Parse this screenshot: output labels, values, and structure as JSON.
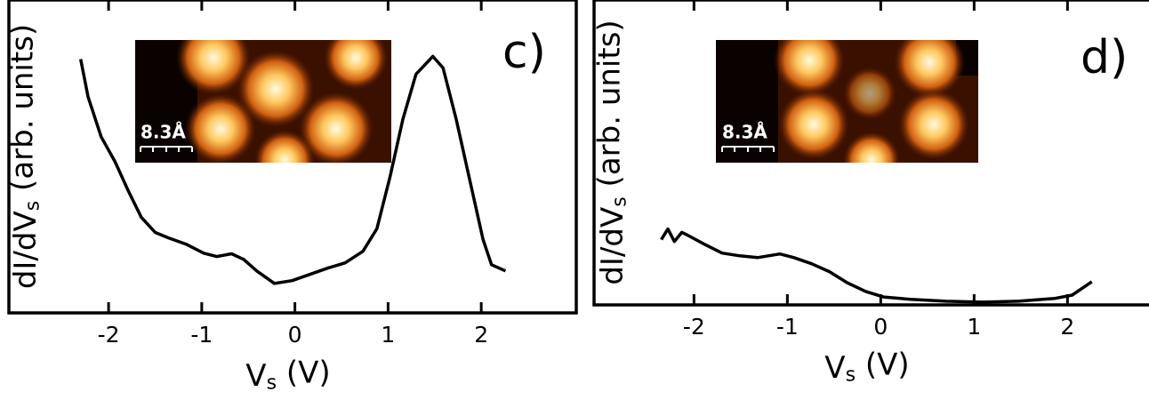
{
  "chart_data": [
    {
      "type": "line",
      "panel_label": "c)",
      "x_label": [
        "V",
        "s",
        " (V)"
      ],
      "y_label": [
        "dI/dV",
        "s",
        " (arb. units)"
      ],
      "inset_label": "8.3Å",
      "xlim": [
        -3.07,
        3.02
      ],
      "xticks": [
        -2,
        -1,
        0,
        1,
        2
      ],
      "ylim": [
        0,
        10
      ],
      "color": "#000000",
      "x": [
        -2.3,
        -2.22,
        -2.08,
        -1.93,
        -1.79,
        -1.65,
        -1.5,
        -1.36,
        -1.17,
        -0.98,
        -0.84,
        -0.68,
        -0.55,
        -0.41,
        -0.22,
        -0.03,
        0.16,
        0.35,
        0.54,
        0.73,
        0.88,
        1.02,
        1.16,
        1.3,
        1.48,
        1.59,
        1.73,
        1.88,
        2.02,
        2.11,
        2.26
      ],
      "values": [
        8.11,
        6.91,
        5.63,
        4.83,
        3.91,
        3.06,
        2.57,
        2.4,
        2.2,
        1.91,
        1.8,
        1.89,
        1.71,
        1.34,
        0.94,
        1.03,
        1.23,
        1.43,
        1.6,
        1.97,
        2.69,
        4.34,
        6.2,
        7.63,
        8.2,
        7.83,
        6.2,
        4.2,
        2.34,
        1.54,
        1.34
      ]
    },
    {
      "type": "line",
      "panel_label": "d)",
      "x_label": [
        "V",
        "s",
        " (V)"
      ],
      "y_label": [
        "dI/dV",
        "s",
        " (arb. units)"
      ],
      "inset_label": "8.3Å",
      "xlim": [
        -3.07,
        2.93
      ],
      "xticks": [
        -2,
        -1,
        0,
        1,
        2
      ],
      "ylim": [
        0,
        10
      ],
      "color": "#000000",
      "x": [
        -2.35,
        -2.28,
        -2.21,
        -2.13,
        -2.07,
        -1.89,
        -1.7,
        -1.51,
        -1.32,
        -1.08,
        -0.93,
        -0.74,
        -0.55,
        -0.36,
        -0.16,
        0.03,
        0.32,
        0.7,
        1.09,
        1.47,
        1.86,
        2.05,
        2.26
      ],
      "values": [
        2.14,
        2.49,
        2.08,
        2.38,
        2.29,
        1.99,
        1.7,
        1.61,
        1.55,
        1.67,
        1.55,
        1.35,
        1.09,
        0.73,
        0.44,
        0.26,
        0.18,
        0.12,
        0.09,
        0.12,
        0.21,
        0.32,
        0.76
      ]
    }
  ]
}
